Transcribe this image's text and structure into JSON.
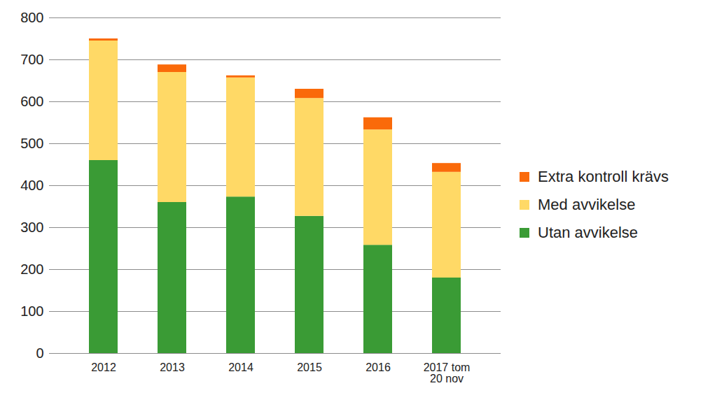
{
  "chart_data": {
    "type": "bar",
    "stacked": true,
    "grid": true,
    "legend": "right",
    "categories": [
      "2012",
      "2013",
      "2014",
      "2015",
      "2016",
      "2017 tom 20 nov"
    ],
    "series": [
      {
        "name": "Utan avvikelse",
        "color": "#3a9b35",
        "values": [
          460,
          360,
          373,
          327,
          258,
          180
        ]
      },
      {
        "name": "Med avvikelse",
        "color": "#ffd966",
        "values": [
          285,
          310,
          284,
          281,
          275,
          252
        ]
      },
      {
        "name": "Extra kontroll krävs",
        "color": "#fa6a0a",
        "values": [
          5,
          18,
          5,
          22,
          29,
          21
        ]
      }
    ],
    "ylim": [
      0,
      800
    ],
    "yticks": [
      0,
      100,
      200,
      300,
      400,
      500,
      600,
      700,
      800
    ]
  }
}
